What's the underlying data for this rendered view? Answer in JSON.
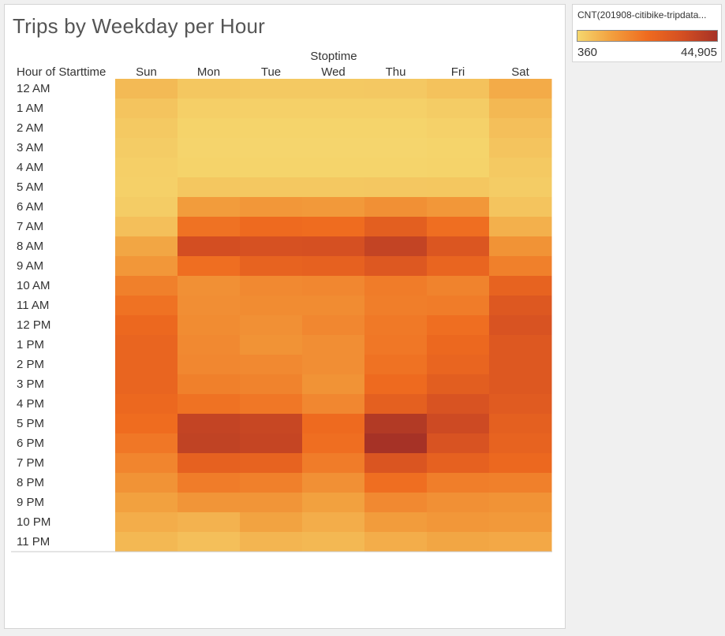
{
  "chart_data": {
    "type": "heatmap",
    "title": "Trips by Weekday per Hour",
    "column_header": "Stoptime",
    "row_header": "Hour of Starttime",
    "columns": [
      "Sun",
      "Mon",
      "Tue",
      "Wed",
      "Thu",
      "Fri",
      "Sat"
    ],
    "rows": [
      "12 AM",
      "1 AM",
      "2 AM",
      "3 AM",
      "4 AM",
      "5 AM",
      "6 AM",
      "7 AM",
      "8 AM",
      "9 AM",
      "10 AM",
      "11 AM",
      "12 PM",
      "1 PM",
      "2 PM",
      "3 PM",
      "4 PM",
      "5 PM",
      "6 PM",
      "7 PM",
      "8 PM",
      "9 PM",
      "10 PM",
      "11 PM"
    ],
    "values": [
      [
        6000,
        3500,
        3000,
        3000,
        3200,
        4500,
        9000
      ],
      [
        4000,
        2000,
        1700,
        1700,
        1800,
        2500,
        6500
      ],
      [
        3000,
        1200,
        1000,
        1000,
        1000,
        1500,
        5000
      ],
      [
        2500,
        900,
        700,
        700,
        700,
        1000,
        4000
      ],
      [
        2000,
        1200,
        1000,
        1000,
        1000,
        1200,
        3000
      ],
      [
        1800,
        3500,
        3300,
        3300,
        3400,
        3500,
        2500
      ],
      [
        2500,
        12000,
        13000,
        12500,
        14500,
        13000,
        4000
      ],
      [
        5000,
        21000,
        23000,
        22500,
        27500,
        22000,
        8000
      ],
      [
        10000,
        34000,
        33000,
        33500,
        38000,
        31000,
        14000
      ],
      [
        13000,
        22000,
        26000,
        26500,
        30000,
        25000,
        18000
      ],
      [
        18000,
        14500,
        16000,
        16500,
        19000,
        17500,
        26000
      ],
      [
        21000,
        15000,
        15500,
        15500,
        18500,
        19000,
        30000
      ],
      [
        24000,
        15500,
        14500,
        16500,
        19500,
        22000,
        32000
      ],
      [
        25000,
        16000,
        14000,
        15000,
        20000,
        24000,
        30000
      ],
      [
        25000,
        16500,
        16000,
        15000,
        21000,
        25000,
        30000
      ],
      [
        25000,
        18000,
        17500,
        14000,
        23000,
        28000,
        30000
      ],
      [
        24000,
        21000,
        20000,
        16500,
        27000,
        32000,
        29000
      ],
      [
        22500,
        38000,
        37000,
        23000,
        42000,
        35500,
        27000
      ],
      [
        20000,
        38500,
        37500,
        22000,
        44905,
        32000,
        26000
      ],
      [
        17000,
        26500,
        26000,
        19000,
        31500,
        26500,
        24000
      ],
      [
        14000,
        19000,
        18000,
        14500,
        22000,
        18500,
        18000
      ],
      [
        11000,
        13500,
        13500,
        11000,
        16000,
        14500,
        14000
      ],
      [
        8500,
        7500,
        10500,
        8500,
        12000,
        13000,
        12500
      ],
      [
        6500,
        5000,
        7000,
        6500,
        8500,
        10000,
        9500
      ]
    ],
    "color_scale": {
      "min": 360,
      "max": 44905,
      "min_label": "360",
      "max_label": "44,905",
      "stops": [
        "#f5d76e",
        "#f29e3d",
        "#ef6b1f",
        "#d44f22",
        "#a63226"
      ]
    },
    "legend_title": "CNT(201908-citibike-tripdata...",
    "legend_placement": "top-right"
  }
}
